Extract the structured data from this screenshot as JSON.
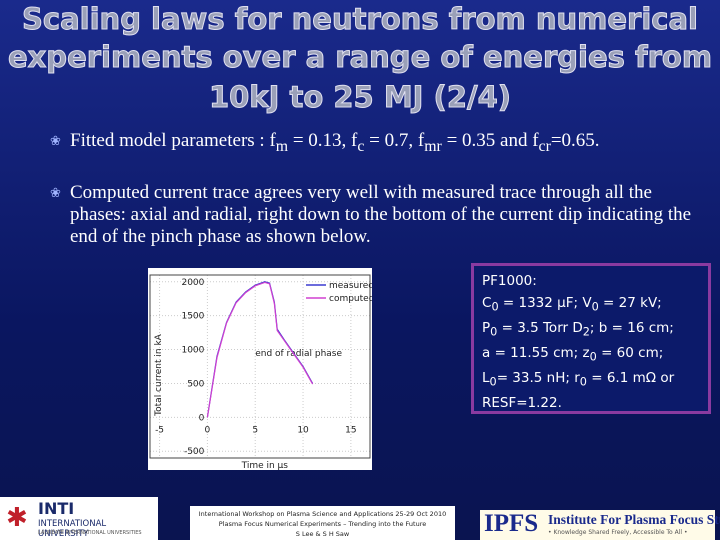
{
  "header": {
    "title": [
      "Scaling laws for neutrons from numerical",
      "experiments over a range of energies from",
      "10kJ to 25 MJ (2/4)"
    ]
  },
  "bullets": [
    [
      "Fitted model parameters : f",
      "m",
      " = 0.13, f",
      "c",
      " = 0.7, f",
      "mr",
      " = 0.35 and f",
      "cr",
      "=0.65."
    ],
    [
      "Computed current trace agrees very well with measured trace through all the phases: axial and radial, right down to the bottom of the current dip indicating the end of the pinch phase as shown below."
    ]
  ],
  "info_box": [
    [
      "PF1000:"
    ],
    [
      "C",
      "0",
      " = 1332 µF; V",
      "0",
      " = 27 kV;"
    ],
    [
      "P",
      "0",
      " = 3.5 Torr D",
      "2",
      "; b = 16 cm;"
    ],
    [
      "a = 11.55 cm;  z",
      "0",
      " = 60 cm;"
    ],
    [
      "L",
      "0",
      "= 33.5 nH; r",
      "0",
      " = 6.1 mΩ  or"
    ],
    [
      "RESF=1.22."
    ]
  ],
  "figure": {
    "ylabel": "Total current in kA",
    "xlabel": "Time in µs",
    "annotation": "end of radial phase",
    "xlim": [
      -6,
      17
    ],
    "ylim": [
      -600,
      2100
    ],
    "xticks": [
      -5,
      0,
      5,
      10,
      15
    ],
    "yticks": [
      -500,
      0,
      500,
      1000,
      1500,
      2000
    ],
    "series": [
      {
        "name": "measured",
        "color": "#3b3bd0",
        "x": [
          0,
          1,
          2,
          3,
          4,
          5,
          6,
          6.5,
          7,
          7.3,
          8,
          9,
          10,
          11
        ],
        "values": [
          0,
          900,
          1400,
          1700,
          1850,
          1950,
          2000,
          1980,
          1700,
          1300,
          1150,
          950,
          750,
          500
        ]
      },
      {
        "name": "computed",
        "color": "#d040d0",
        "x": [
          0,
          1,
          2,
          3,
          4,
          5,
          6,
          6.5,
          7,
          7.3,
          8,
          9,
          10,
          11
        ],
        "values": [
          0,
          880,
          1390,
          1690,
          1840,
          1940,
          1990,
          1970,
          1680,
          1280,
          1140,
          940,
          740,
          490
        ]
      }
    ]
  },
  "footer": {
    "logo": [
      "INTI",
      "INTERNATIONAL UNIVERSITY",
      "LAUREATE INTERNATIONAL UNIVERSITIES"
    ],
    "center": [
      "International Workshop on Plasma Science and Applications 25-29 Oct 2010",
      "Plasma Focus Numerical Experiments – Trending into the Future",
      "S Lee & S H Saw"
    ],
    "ipfs": [
      "IPFS",
      "Institute For Plasma Focus Studies",
      "• Knowledge Shared Freely, Accessible To All •"
    ]
  }
}
